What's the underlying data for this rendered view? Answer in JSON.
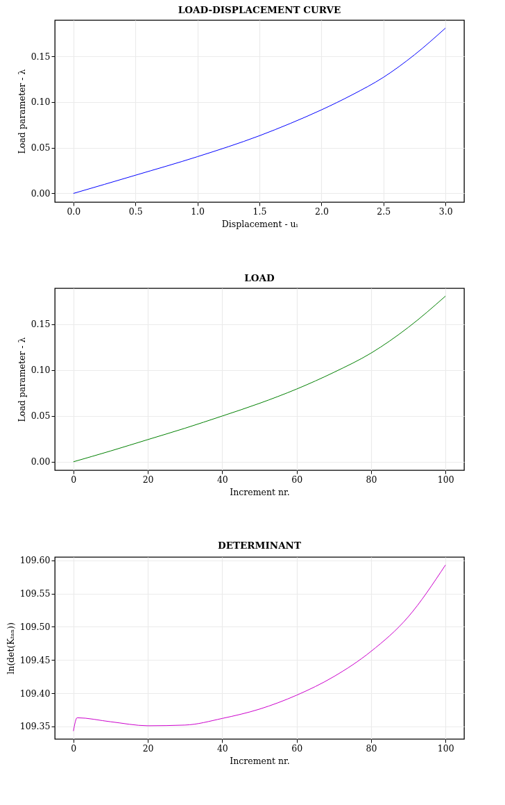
{
  "chart_data": [
    {
      "type": "line",
      "title": "LOAD-DISPLACEMENT CURVE",
      "xlabel": "Displacement - uᵢ",
      "ylabel": "Load parameter - λ",
      "grid": true,
      "x": [
        0,
        0.25,
        0.5,
        1.0,
        1.5,
        1.75,
        2.0,
        2.25,
        2.5,
        2.75,
        3.0
      ],
      "series": [
        {
          "color": "#0000ff",
          "values": [
            0,
            0.0099,
            0.0199,
            0.0402,
            0.0631,
            0.0766,
            0.0914,
            0.108,
            0.127,
            0.1516,
            0.1808
          ]
        }
      ],
      "xlim": [
        -0.15,
        3.15
      ],
      "ylim": [
        -0.0095,
        0.1895
      ],
      "xticks": [
        {
          "value": 0,
          "label": "0.0"
        },
        0.5,
        {
          "value": 1,
          "label": "1.0"
        },
        1.5,
        {
          "value": 2,
          "label": "2.0"
        },
        2.5,
        {
          "value": 3,
          "label": "3.0"
        }
      ],
      "yticks": [
        {
          "value": 0,
          "label": "0.00"
        },
        0.05,
        {
          "value": 0.1,
          "label": "0.10"
        },
        0.15
      ]
    },
    {
      "type": "line",
      "title": "LOAD",
      "xlabel": "Increment nr.",
      "ylabel": "Load parameter - λ",
      "grid": true,
      "x": [
        0,
        10,
        20,
        30,
        40,
        50,
        60,
        70,
        80,
        90,
        100
      ],
      "series": [
        {
          "color": "#008000",
          "values": [
            0,
            0.0118,
            0.0242,
            0.0366,
            0.0499,
            0.0637,
            0.0793,
            0.0975,
            0.1185,
            0.1465,
            0.1806
          ]
        }
      ],
      "xlim": [
        -5,
        105
      ],
      "ylim": [
        -0.0092,
        0.1892
      ],
      "xticks": [
        0,
        20,
        40,
        60,
        80,
        100
      ],
      "yticks": [
        {
          "value": 0,
          "label": "0.00"
        },
        0.05,
        {
          "value": 0.1,
          "label": "0.10"
        },
        0.15
      ]
    },
    {
      "type": "line",
      "title": "DETERMINANT",
      "xlabel": "Increment nr.",
      "ylabel": "ln(det(Kₜₐₙ))",
      "grid": true,
      "x": [
        0,
        1,
        10,
        20,
        30,
        40,
        50,
        60,
        70,
        80,
        90,
        100
      ],
      "series": [
        {
          "color": "#cc00cc",
          "values": [
            109.343,
            109.363,
            109.357,
            109.351,
            109.352,
            109.362,
            109.376,
            109.397,
            109.425,
            109.463,
            109.515,
            109.593
          ]
        }
      ],
      "xlim": [
        -5,
        105
      ],
      "ylim": [
        109.331,
        109.605
      ],
      "xticks": [
        0,
        20,
        40,
        60,
        80,
        100
      ],
      "yticks": [
        109.35,
        {
          "value": 109.4,
          "label": "109.40"
        },
        109.45,
        {
          "value": 109.5,
          "label": "109.50"
        },
        109.55,
        {
          "value": 109.6,
          "label": "109.60"
        }
      ]
    }
  ]
}
